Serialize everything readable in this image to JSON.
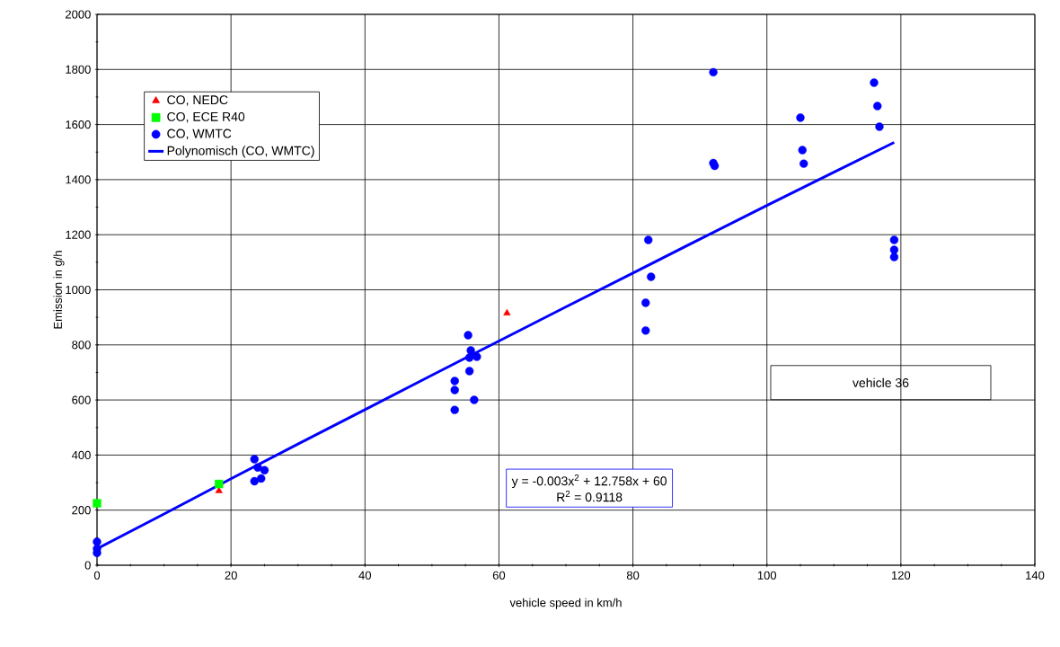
{
  "chart_data": {
    "type": "scatter",
    "xlabel": "vehicle speed in km/h",
    "ylabel": "Emission in g/h",
    "xlim": [
      0,
      140
    ],
    "ylim": [
      0,
      2000
    ],
    "xticks": [
      0,
      20,
      40,
      60,
      80,
      100,
      120,
      140
    ],
    "yticks": [
      0,
      200,
      400,
      600,
      800,
      1000,
      1200,
      1400,
      1600,
      1800,
      2000
    ],
    "grid": true,
    "legend": "top left",
    "series": [
      {
        "name": "CO, NEDC",
        "color": "#ff0000",
        "marker": "triangle",
        "x": [
          18.2,
          61.2
        ],
        "values": [
          270,
          915
        ]
      },
      {
        "name": "CO, ECE R40",
        "color": "#00ff00",
        "marker": "square",
        "x": [
          0,
          18.2
        ],
        "values": [
          225,
          295
        ]
      },
      {
        "name": "CO, WMTC",
        "color": "#0000ff",
        "marker": "circle",
        "x": [
          0,
          0,
          0,
          23.5,
          23.5,
          24,
          24.5,
          25,
          55.4,
          55.8,
          55.6,
          56.7,
          55.6,
          53.4,
          53.4,
          56.3,
          53.4,
          82.3,
          82.7,
          81.9,
          81.9,
          92,
          92,
          92.2,
          105,
          105.3,
          105.5,
          116,
          116.5,
          116.8,
          119,
          119,
          119
        ],
        "values": [
          45,
          60,
          85,
          385,
          305,
          355,
          315,
          345,
          835,
          780,
          754,
          757,
          705,
          669,
          636,
          600,
          564,
          1181,
          1047,
          953,
          852,
          1790,
          1460,
          1450,
          1625,
          1507,
          1458,
          1752,
          1667,
          1592,
          1181,
          1145,
          1119
        ]
      },
      {
        "name": "Polynomisch (CO, WMTC)",
        "type": "line",
        "color": "#0000ff",
        "marker": "none",
        "x": [
          0,
          10,
          20,
          30,
          40,
          50,
          60,
          70,
          80,
          90,
          100,
          110,
          119
        ],
        "values": [
          60,
          186,
          314,
          440,
          565,
          690,
          814,
          938,
          1061,
          1184,
          1306,
          1427,
          1535
        ]
      }
    ],
    "annotations": [
      "vehicle 36",
      "y = -0.003x$^{2}$ + 12.758x + 60",
      "R$^{2}$ = 0.9118"
    ]
  }
}
